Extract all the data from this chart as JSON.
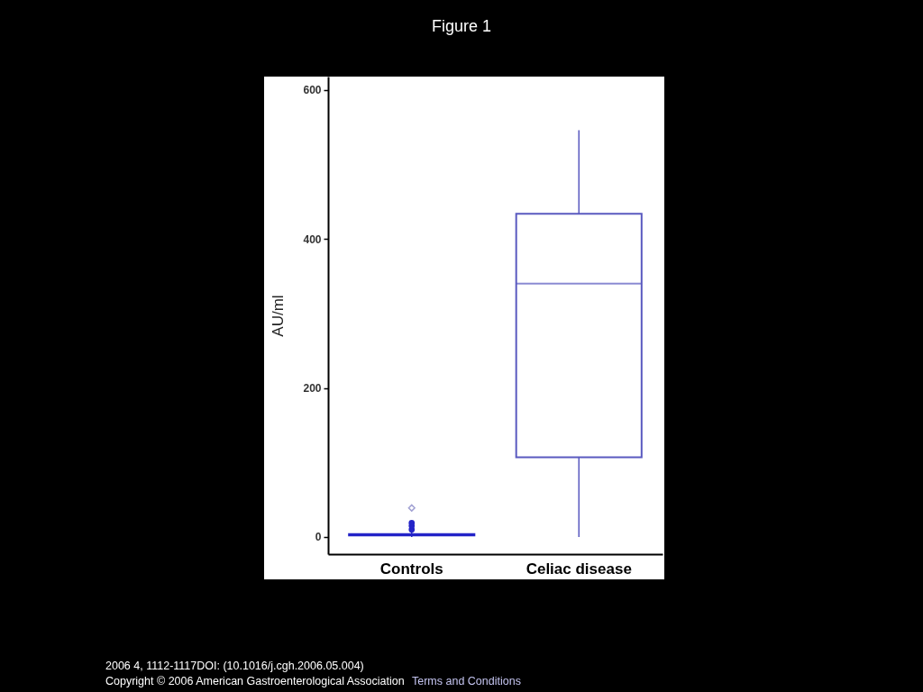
{
  "chart_data": {
    "type": "box",
    "title": "Figure 1",
    "ylabel": "AU/ml",
    "categories": [
      "Controls",
      "Celiac disease"
    ],
    "boxes": [
      {
        "low": 0,
        "q1": 2,
        "median": 3,
        "q3": 4,
        "high": 6,
        "outliers": [
          10,
          15,
          19
        ]
      },
      {
        "low": 0,
        "q1": 107,
        "median": 340,
        "q3": 434,
        "high": 546
      }
    ],
    "colors": [
      "#2424c8",
      "#5a5ac0"
    ],
    "series": [
      {
        "type": "scatter",
        "x": [
          "Controls"
        ],
        "values": [
          39
        ],
        "color": "#7a7ac0",
        "marker": "diamond"
      }
    ],
    "ylim": [
      -23,
      618
    ],
    "yticks": [
      0,
      200,
      400,
      600
    ],
    "grid": false,
    "annotations": [
      "2006 4, 1112-1117DOI: (10.1016/j.cgh.2006.05.004)",
      "Copyright © 2006 American Gastroenterological Association",
      "Terms and Conditions"
    ]
  }
}
